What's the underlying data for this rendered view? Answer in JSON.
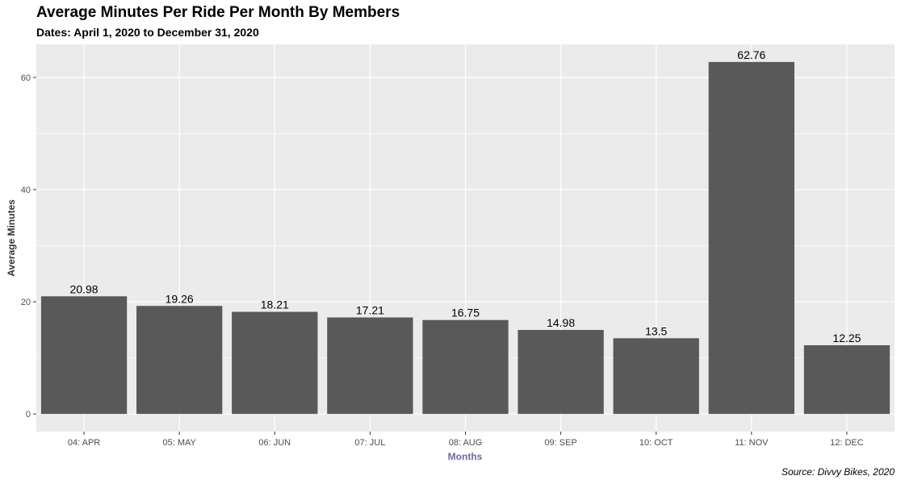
{
  "chart_data": {
    "type": "bar",
    "title": "Average Minutes Per Ride Per Month By Members",
    "subtitle": "Dates: April 1, 2020 to December 31, 2020",
    "caption": "Source: Divvy Bikes, 2020",
    "xlabel": "Months",
    "ylabel": "Average Minutes",
    "categories": [
      "04: APR",
      "05: MAY",
      "06: JUN",
      "07: JUL",
      "08: AUG",
      "09: SEP",
      "10: OCT",
      "11: NOV",
      "12: DEC"
    ],
    "values": [
      20.98,
      19.26,
      18.21,
      17.21,
      16.75,
      14.98,
      13.5,
      62.76,
      12.25
    ],
    "value_labels": [
      "20.98",
      "19.26",
      "18.21",
      "17.21",
      "16.75",
      "14.98",
      "13.5",
      "62.76",
      "12.25"
    ],
    "ylim": [
      -3.14,
      65.9
    ],
    "yticks": [
      0,
      20,
      40,
      60
    ],
    "ytick_labels": [
      "0",
      "20",
      "40",
      "60"
    ],
    "grid": true,
    "colors": {
      "bar": "#595959",
      "panel": "#ebebeb",
      "grid": "#ffffff",
      "xlabel": "#6b6b9a",
      "ylabel": "#333333"
    }
  }
}
